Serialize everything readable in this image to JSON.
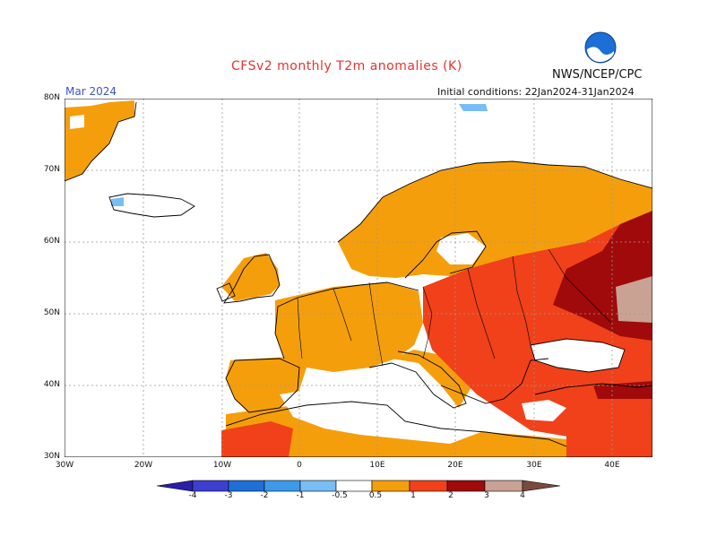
{
  "header": {
    "title": "CFSv2 monthly T2m anomalies (K)",
    "agency": "NWS/NCEP/CPC",
    "logo_text": "NOAA",
    "month": "Mar 2024",
    "initial_conditions": "Initial conditions: 22Jan2024-31Jan2024"
  },
  "axes": {
    "lat_labels": [
      "80N",
      "70N",
      "60N",
      "50N",
      "40N",
      "30N"
    ],
    "lon_labels": [
      "30W",
      "20W",
      "10W",
      "0",
      "10E",
      "20E",
      "30E",
      "40E"
    ]
  },
  "colorbar": {
    "labels": [
      "-4",
      "-3",
      "-2",
      "-1",
      "-0.5",
      "0.5",
      "1",
      "2",
      "3",
      "4"
    ],
    "colors": [
      "#2a1fa8",
      "#3d3fd2",
      "#1e6fd8",
      "#3c9ae8",
      "#78bdf5",
      "#ffffff",
      "#f59e0b",
      "#f0411a",
      "#a00a0a",
      "#c9a294",
      "#7a4a3e"
    ]
  },
  "colors": {
    "ocean": "#ffffff",
    "anomaly_0_5_1": "#f59e0b",
    "anomaly_1_2": "#f0411a",
    "anomaly_2_3": "#a00a0a",
    "anomaly_3_4": "#c9a294",
    "anomaly_neg_1_0_5": "#78bdf5",
    "grid": "#999999",
    "coast": "#000000"
  }
}
